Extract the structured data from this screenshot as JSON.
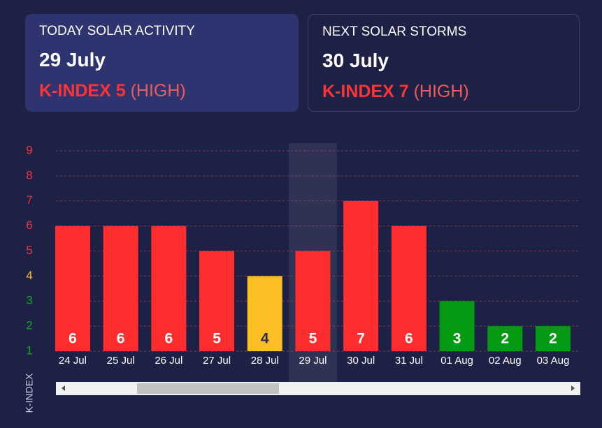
{
  "cards": [
    {
      "title": "TODAY SOLAR ACTIVITY",
      "date": "29 July",
      "index": "K-INDEX 5",
      "level": "(HIGH)"
    },
    {
      "title": "NEXT SOLAR STORMS",
      "date": "30 July",
      "index": "K-INDEX 7",
      "level": "(HIGH)"
    }
  ],
  "chart_data": {
    "type": "bar",
    "y_label": "K-INDEX",
    "categories": [
      "24 Jul",
      "25 Jul",
      "26 Jul",
      "27 Jul",
      "28 Jul",
      "29 Jul",
      "30 Jul",
      "31 Jul",
      "01 Aug",
      "02 Aug",
      "03 Aug"
    ],
    "values": [
      6,
      6,
      6,
      5,
      4,
      5,
      7,
      6,
      3,
      2,
      2
    ],
    "colors": [
      "#ff2d2d",
      "#ff2d2d",
      "#ff2d2d",
      "#ff2d2d",
      "#fbbf24",
      "#ff2d2d",
      "#ff2d2d",
      "#ff2d2d",
      "#049b13",
      "#049b13",
      "#049b13"
    ],
    "ylim": [
      1,
      9
    ],
    "yticks": [
      1,
      2,
      3,
      4,
      5,
      6,
      7,
      8,
      9
    ],
    "ytick_colors": [
      "#11a51f",
      "#11a51f",
      "#11a51f",
      "#fbbf24",
      "#e8383a",
      "#e8383a",
      "#e8383a",
      "#e8383a",
      "#e8383a"
    ],
    "grid": true,
    "highlight_index": 5
  }
}
